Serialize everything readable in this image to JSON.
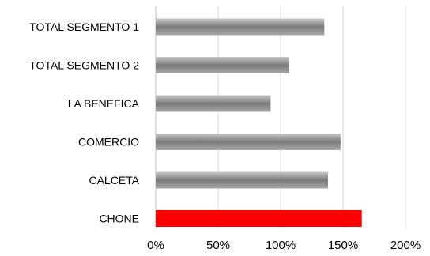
{
  "chart_data": {
    "type": "bar",
    "orientation": "horizontal",
    "categories": [
      "TOTAL SEGMENTO 1",
      "TOTAL SEGMENTO 2",
      "LA BENEFICA",
      "COMERCIO",
      "CALCETA",
      "CHONE"
    ],
    "values": [
      135,
      107,
      92,
      148,
      138,
      165
    ],
    "value_unit": "%",
    "xlim": [
      0,
      200
    ],
    "xticks": [
      "0%",
      "50%",
      "100%",
      "150%",
      "200%"
    ],
    "xtick_values": [
      0,
      50,
      100,
      150,
      200
    ],
    "grid": "vertical",
    "legend": "none",
    "colors": {
      "default_bar": "#8c8c8c",
      "highlight_bar": "#ff0000",
      "grid": "#d9d9d9",
      "axis": "#bfbfbf"
    },
    "highlight_category": "CHONE"
  }
}
